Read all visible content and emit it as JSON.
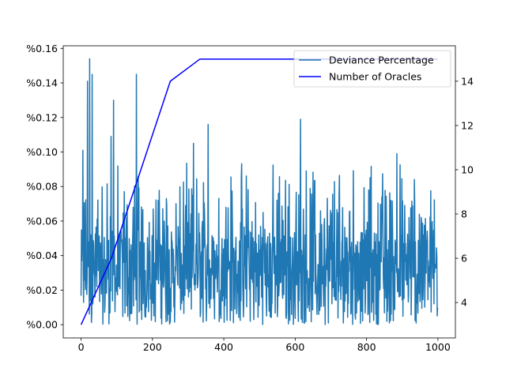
{
  "chart_data": {
    "type": "line",
    "title": "",
    "xlabel": "",
    "ylabel_left": "",
    "ylabel_right": "",
    "xlim": [
      -50,
      1049
    ],
    "ylim_left": [
      -0.0077,
      0.1615
    ],
    "ylim_right": [
      2.4,
      15.6
    ],
    "x_ticks": [
      0,
      200,
      400,
      600,
      800,
      1000
    ],
    "y_left_ticks": [
      0.0,
      0.02,
      0.04,
      0.06,
      0.08,
      0.1,
      0.12,
      0.14,
      0.16
    ],
    "y_left_tick_labels": [
      "%0.00",
      "%0.02",
      "%0.04",
      "%0.06",
      "%0.08",
      "%0.10",
      "%0.12",
      "%0.14",
      "%0.16"
    ],
    "y_right_ticks": [
      4,
      6,
      8,
      10,
      12,
      14
    ],
    "grid": false,
    "legend_placement": "top-right",
    "series": [
      {
        "name": "Deviance Percentage",
        "axis": "left",
        "color": "#1f77b4",
        "x_range": [
          0,
          999
        ],
        "samples": 1000,
        "approx_mean": 0.03,
        "approx_range": [
          0.0,
          0.154
        ],
        "notable_peaks": [
          {
            "x": 5,
            "y": 0.101
          },
          {
            "x": 18,
            "y": 0.141
          },
          {
            "x": 24,
            "y": 0.154
          },
          {
            "x": 31,
            "y": 0.145
          },
          {
            "x": 84,
            "y": 0.109
          },
          {
            "x": 91,
            "y": 0.13
          },
          {
            "x": 155,
            "y": 0.145
          },
          {
            "x": 315,
            "y": 0.105
          },
          {
            "x": 356,
            "y": 0.116
          },
          {
            "x": 615,
            "y": 0.119
          },
          {
            "x": 885,
            "y": 0.099
          }
        ]
      },
      {
        "name": "Number of Oracles",
        "axis": "right",
        "color": "#0000ff",
        "x": [
          0,
          85,
          250,
          333,
          999
        ],
        "y": [
          3,
          6,
          14,
          15,
          15
        ]
      }
    ]
  }
}
